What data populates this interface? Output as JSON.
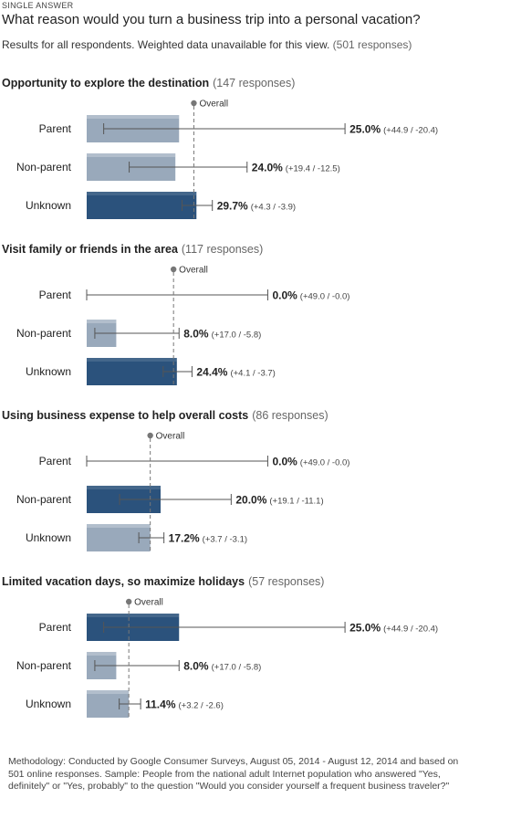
{
  "kicker": "SINGLE ANSWER",
  "question": "What reason would you turn a business trip into a personal vacation?",
  "subtitle": "Results for all respondents. Weighted data unavailable for this view.",
  "subtitle_count": "(501 responses)",
  "overall_label": "Overall",
  "methodology": "Methodology: Conducted by Google Consumer Surveys, August 05, 2014 - August 12, 2014 and based on 501 online responses. Sample: People from the national adult Internet population who answered \"Yes, definitely\" or \"Yes, probably\" to the question \"Would you consider yourself a frequent business traveler?\"",
  "colors": {
    "dark_bar": "#2b527c",
    "light_bar": "#99a9bb",
    "errorbar": "#555555",
    "overall_line": "#777777"
  },
  "chart_data": {
    "type": "bar",
    "orientation": "horizontal",
    "xlim": [
      0,
      100
    ],
    "panels": [
      {
        "title": "Opportunity to explore the destination",
        "responses": "(147 responses)",
        "overall": 29.0,
        "categories": [
          "Parent",
          "Non-parent",
          "Unknown"
        ],
        "values": [
          25.0,
          24.0,
          29.7
        ],
        "value_labels": [
          "25.0%",
          "24.0%",
          "29.7%"
        ],
        "error_plus": [
          44.9,
          19.4,
          4.3
        ],
        "error_minus": [
          20.4,
          12.5,
          3.9
        ],
        "error_labels": [
          "(+44.9 / -20.4)",
          "(+19.4 / -12.5)",
          "(+4.3 / -3.9)"
        ],
        "highlight": [
          false,
          false,
          true
        ]
      },
      {
        "title": "Visit family or friends in the area",
        "responses": "(117 responses)",
        "overall": 23.5,
        "categories": [
          "Parent",
          "Non-parent",
          "Unknown"
        ],
        "values": [
          0.0,
          8.0,
          24.4
        ],
        "value_labels": [
          "0.0%",
          "8.0%",
          "24.4%"
        ],
        "error_plus": [
          49.0,
          17.0,
          4.1
        ],
        "error_minus": [
          0.0,
          5.8,
          3.7
        ],
        "error_labels": [
          "(+49.0 / -0.0)",
          "(+17.0 / -5.8)",
          "(+4.1 / -3.7)"
        ],
        "highlight": [
          false,
          false,
          true
        ]
      },
      {
        "title": "Using business expense to help overall costs",
        "responses": "(86 responses)",
        "overall": 17.2,
        "categories": [
          "Parent",
          "Non-parent",
          "Unknown"
        ],
        "values": [
          0.0,
          20.0,
          17.2
        ],
        "value_labels": [
          "0.0%",
          "20.0%",
          "17.2%"
        ],
        "error_plus": [
          49.0,
          19.1,
          3.7
        ],
        "error_minus": [
          0.0,
          11.1,
          3.1
        ],
        "error_labels": [
          "(+49.0 / -0.0)",
          "(+19.1 / -11.1)",
          "(+3.7 / -3.1)"
        ],
        "highlight": [
          false,
          true,
          false
        ]
      },
      {
        "title": "Limited vacation days, so maximize holidays",
        "responses": "(57 responses)",
        "overall": 11.4,
        "categories": [
          "Parent",
          "Non-parent",
          "Unknown"
        ],
        "values": [
          25.0,
          8.0,
          11.4
        ],
        "value_labels": [
          "25.0%",
          "8.0%",
          "11.4%"
        ],
        "error_plus": [
          44.9,
          17.0,
          3.2
        ],
        "error_minus": [
          20.4,
          5.8,
          2.6
        ],
        "error_labels": [
          "(+44.9 / -20.4)",
          "(+17.0 / -5.8)",
          "(+3.2 / -2.6)"
        ],
        "highlight": [
          true,
          false,
          false
        ]
      }
    ]
  }
}
